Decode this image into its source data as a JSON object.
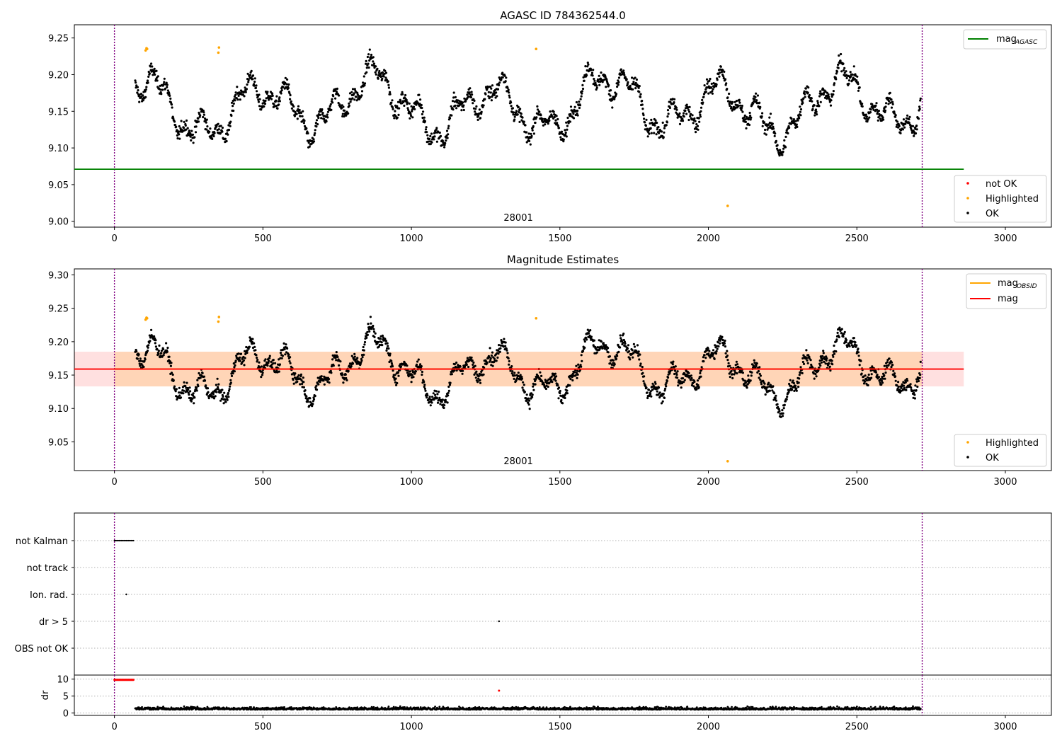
{
  "chart_data": [
    {
      "type": "scatter",
      "title": "AGASC ID 784362544.0",
      "xlim": [
        -135,
        3155
      ],
      "ylim": [
        8.992,
        9.268
      ],
      "xticks": [
        0,
        500,
        1000,
        1500,
        2000,
        2500,
        3000
      ],
      "xtick_labels": [
        "0",
        "500",
        "1000",
        "1500",
        "2000",
        "2500",
        "3000"
      ],
      "yticks": [
        9.0,
        9.05,
        9.1,
        9.15,
        9.2,
        9.25
      ],
      "ytick_labels": [
        "9.00",
        "9.05",
        "9.10",
        "9.15",
        "9.20",
        "9.25"
      ],
      "vlines": [
        0,
        2720
      ],
      "obsid_label": "28001",
      "obsid_label_x": 1360,
      "reference_line": {
        "name": "mag_AGASC",
        "y": 9.071,
        "x": [
          -135,
          2860
        ],
        "color": "#008000"
      },
      "legend_lines": [
        {
          "label": "mag",
          "sub": "AGASC",
          "color": "#008000"
        }
      ],
      "legend_points": [
        {
          "label": "not OK",
          "color": "#ff0000"
        },
        {
          "label": "Highlighted",
          "color": "#ffa500"
        },
        {
          "label": "OK",
          "color": "#000000"
        }
      ],
      "x_range_points": [
        70,
        2715
      ],
      "highlighted_points": [
        {
          "x": 105,
          "y": 9.233
        },
        {
          "x": 108,
          "y": 9.236
        },
        {
          "x": 110,
          "y": 9.235
        },
        {
          "x": 350,
          "y": 9.23
        },
        {
          "x": 352,
          "y": 9.237
        },
        {
          "x": 1420,
          "y": 9.235
        },
        {
          "x": 2065,
          "y": 9.021
        }
      ]
    },
    {
      "type": "scatter",
      "title": "Magnitude Estimates",
      "xlim": [
        -135,
        3155
      ],
      "ylim": [
        9.007,
        9.309
      ],
      "xticks": [
        0,
        500,
        1000,
        1500,
        2000,
        2500,
        3000
      ],
      "xtick_labels": [
        "0",
        "500",
        "1000",
        "1500",
        "2000",
        "2500",
        "3000"
      ],
      "yticks": [
        9.05,
        9.1,
        9.15,
        9.2,
        9.25,
        9.3
      ],
      "ytick_labels": [
        "9.05",
        "9.10",
        "9.15",
        "9.20",
        "9.25",
        "9.30"
      ],
      "vlines": [
        0,
        2720
      ],
      "obsid_label": "28001",
      "obsid_label_x": 1360,
      "mag_line": {
        "y": 9.159,
        "x": [
          -135,
          2860
        ],
        "color": "#ff0000"
      },
      "mag_obsid_line": {
        "y": 9.159,
        "x": [
          0,
          2720
        ],
        "color": "#ffa500"
      },
      "band_outer": {
        "y": [
          9.133,
          9.185
        ],
        "x": [
          -135,
          2860
        ]
      },
      "band_inner": {
        "y": [
          9.133,
          9.185
        ],
        "x": [
          0,
          2720
        ]
      },
      "legend_lines": [
        {
          "label": "mag",
          "sub": "OBSID",
          "color": "#ffa500"
        },
        {
          "label": "mag",
          "sub": "",
          "color": "#ff0000"
        }
      ],
      "legend_points": [
        {
          "label": "Highlighted",
          "color": "#ffa500"
        },
        {
          "label": "OK",
          "color": "#000000"
        }
      ]
    },
    {
      "type": "scatter",
      "title": "",
      "xlim": [
        -135,
        3155
      ],
      "categories": [
        "not Kalman",
        "not track",
        "Ion. rad.",
        "dr > 5",
        "OBS not OK"
      ],
      "flag_segments": [
        {
          "category": "not Kalman",
          "x": [
            0,
            65
          ],
          "color": "#000000"
        },
        {
          "category": "Ion. rad.",
          "x": [
            40,
            40
          ],
          "color": "#000000"
        },
        {
          "category": "dr > 5",
          "x": [
            1295,
            1295
          ],
          "color": "#000000"
        }
      ],
      "vlines": [
        0,
        2720
      ]
    },
    {
      "type": "scatter",
      "title": "",
      "ylabel": "dr",
      "xlim": [
        -135,
        3155
      ],
      "ylim": [
        -0.7,
        11.2
      ],
      "xticks": [
        0,
        500,
        1000,
        1500,
        2000,
        2500,
        3000
      ],
      "xtick_labels": [
        "0",
        "500",
        "1000",
        "1500",
        "2000",
        "2500",
        "3000"
      ],
      "yticks": [
        0,
        5,
        10
      ],
      "ytick_labels": [
        "0",
        "5",
        "10"
      ],
      "vlines": [
        0,
        2720
      ],
      "red_points": {
        "x": [
          0,
          65
        ],
        "y": 9.8
      },
      "red_outlier": {
        "x": 1295,
        "y": 6.6
      },
      "ok_points_range": {
        "x": [
          70,
          2715
        ],
        "y": [
          0.2,
          2.6
        ]
      }
    }
  ]
}
